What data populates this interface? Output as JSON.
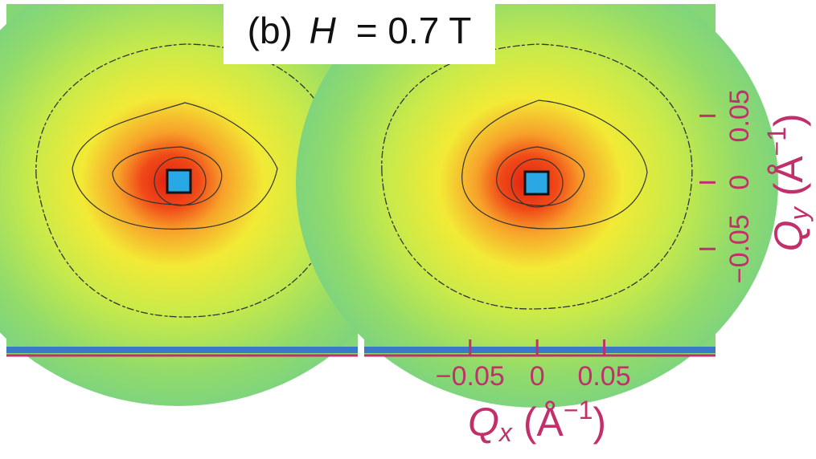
{
  "chart_data": {
    "type": "heatmap",
    "title": [
      "(b)",
      "H",
      "= 0.7 T"
    ],
    "x_label": [
      "Q",
      "x",
      "(Å",
      "−1",
      ")"
    ],
    "y_label": [
      "Q",
      "y",
      "(Å",
      "−1",
      ")"
    ],
    "xlim": [
      -0.129,
      0.133
    ],
    "ylim": [
      -0.13,
      0.134
    ],
    "xticks": [
      {
        "value": -0.05,
        "label": "−0.05"
      },
      0,
      0.05
    ],
    "yticks": [
      {
        "value": -0.05,
        "label": "−0.05"
      },
      0,
      0.05
    ],
    "axis_color": "#c2306c"
  }
}
